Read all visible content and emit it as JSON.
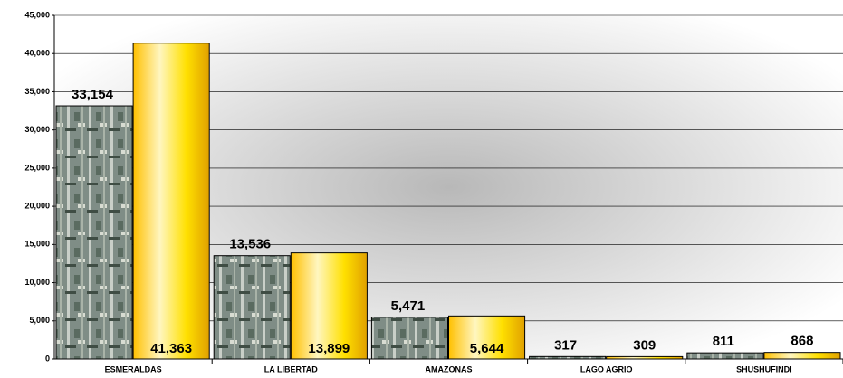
{
  "chart_data": {
    "type": "bar",
    "categories": [
      "ESMERALDAS",
      "LA LIBERTAD",
      "AMAZONAS",
      "LAGO AGRIO",
      "SHUSHUFINDI"
    ],
    "series": [
      {
        "color": "#8a9a88",
        "values": [
          33154,
          13536,
          5471,
          317,
          811
        ],
        "value_labels": [
          "33,154",
          "13,536",
          "5,471",
          "317",
          "811"
        ]
      },
      {
        "color": "#ffd700",
        "values": [
          41363,
          13899,
          5644,
          309,
          868
        ],
        "value_labels": [
          "41,363",
          "13,899",
          "5,644",
          "309",
          "868"
        ]
      }
    ],
    "ylim": [
      0,
      45000
    ],
    "yticks": [
      0,
      {
        "value": 5000,
        "label": "5,000"
      },
      {
        "value": 10000,
        "label": "10,000"
      },
      {
        "value": 15000,
        "label": "15,000"
      },
      {
        "value": 20000,
        "label": "20,000"
      },
      {
        "value": 25000,
        "label": "25,000"
      },
      {
        "value": 30000,
        "label": "30,000"
      },
      {
        "value": 35000,
        "label": "35,000"
      },
      {
        "value": 40000,
        "label": "40,000"
      },
      {
        "value": 45000,
        "label": "45,000"
      }
    ],
    "grid": true
  }
}
